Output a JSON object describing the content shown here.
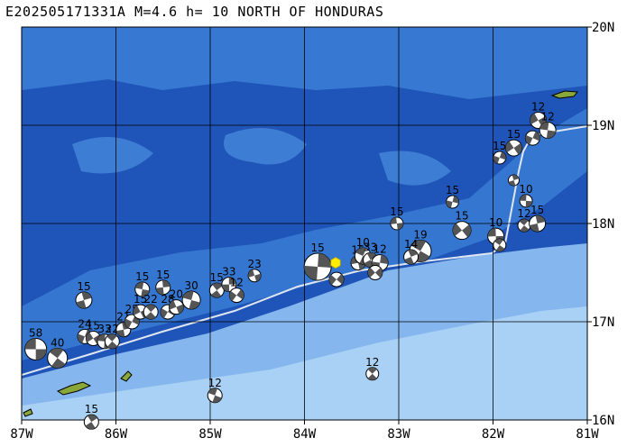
{
  "title": "E202505171331A M=4.6 h= 10 NORTH OF HONDURAS",
  "longitude_labels": [
    "87W",
    "86W",
    "85W",
    "84W",
    "83W",
    "82W",
    "81W"
  ],
  "latitude_labels": [
    "20N",
    "19N",
    "18N",
    "17N",
    "16N"
  ],
  "extent": {
    "lon_min": -87,
    "lon_max": -81,
    "lat_min": 16,
    "lat_max": 20
  },
  "colors": {
    "deep_water": "#1f55b8",
    "mid_water": "#3b7fd6",
    "shelf_water": "#86b6ee",
    "shallow_water": "#a9d0f5",
    "land": "#8aa83a",
    "grid": "#000000",
    "fault": "#dfe6f2",
    "epicenter": "#ffee00",
    "beachball_dark": "#555555",
    "beachball_light": "#ffffff"
  },
  "epicenter": {
    "lon": -83.67,
    "lat": 17.6
  },
  "events": [
    {
      "lon": -86.85,
      "lat": 16.72,
      "label": "58",
      "size": 12
    },
    {
      "lon": -86.62,
      "lat": 16.63,
      "label": "40",
      "size": 11
    },
    {
      "lon": -86.34,
      "lat": 17.22,
      "label": "15",
      "size": 9
    },
    {
      "lon": -86.33,
      "lat": 16.85,
      "label": "24",
      "size": 8
    },
    {
      "lon": -86.24,
      "lat": 16.83,
      "label": "15",
      "size": 8
    },
    {
      "lon": -86.12,
      "lat": 16.8,
      "label": "33",
      "size": 8
    },
    {
      "lon": -86.04,
      "lat": 16.8,
      "label": "22",
      "size": 8
    },
    {
      "lon": -85.92,
      "lat": 16.92,
      "label": "21",
      "size": 8
    },
    {
      "lon": -85.83,
      "lat": 17.0,
      "label": "25",
      "size": 8
    },
    {
      "lon": -85.74,
      "lat": 17.1,
      "label": "15",
      "size": 8
    },
    {
      "lon": -85.72,
      "lat": 17.33,
      "label": "15",
      "size": 8
    },
    {
      "lon": -85.63,
      "lat": 17.1,
      "label": "22",
      "size": 8
    },
    {
      "lon": -85.5,
      "lat": 17.35,
      "label": "15",
      "size": 8
    },
    {
      "lon": -85.45,
      "lat": 17.1,
      "label": "28",
      "size": 8
    },
    {
      "lon": -85.36,
      "lat": 17.15,
      "label": "20",
      "size": 8
    },
    {
      "lon": -85.2,
      "lat": 17.22,
      "label": "30",
      "size": 10
    },
    {
      "lon": -84.93,
      "lat": 17.32,
      "label": "15",
      "size": 8
    },
    {
      "lon": -84.8,
      "lat": 17.38,
      "label": "33",
      "size": 8
    },
    {
      "lon": -84.72,
      "lat": 17.27,
      "label": "12",
      "size": 8
    },
    {
      "lon": -84.53,
      "lat": 17.47,
      "label": "23",
      "size": 7
    },
    {
      "lon": -84.95,
      "lat": 16.25,
      "label": "12",
      "size": 8
    },
    {
      "lon": -86.26,
      "lat": 15.98,
      "label": "15",
      "size": 8
    },
    {
      "lon": -83.86,
      "lat": 17.56,
      "label": "15",
      "size": 15
    },
    {
      "lon": -83.66,
      "lat": 17.43,
      "label": "",
      "size": 8
    },
    {
      "lon": -83.43,
      "lat": 17.6,
      "label": "15",
      "size": 8
    },
    {
      "lon": -83.38,
      "lat": 17.67,
      "label": "10",
      "size": 9
    },
    {
      "lon": -83.3,
      "lat": 17.63,
      "label": "33",
      "size": 8
    },
    {
      "lon": -83.2,
      "lat": 17.6,
      "label": "12",
      "size": 9
    },
    {
      "lon": -83.25,
      "lat": 17.5,
      "label": "",
      "size": 8
    },
    {
      "lon": -83.02,
      "lat": 18.0,
      "label": "15",
      "size": 7
    },
    {
      "lon": -82.77,
      "lat": 17.72,
      "label": "19",
      "size": 12
    },
    {
      "lon": -82.87,
      "lat": 17.66,
      "label": "14",
      "size": 8
    },
    {
      "lon": -82.43,
      "lat": 18.22,
      "label": "15",
      "size": 7
    },
    {
      "lon": -82.33,
      "lat": 17.93,
      "label": "15",
      "size": 10
    },
    {
      "lon": -81.97,
      "lat": 17.87,
      "label": "10",
      "size": 9
    },
    {
      "lon": -81.93,
      "lat": 17.78,
      "label": "",
      "size": 7
    },
    {
      "lon": -81.78,
      "lat": 18.44,
      "label": "",
      "size": 6
    },
    {
      "lon": -81.93,
      "lat": 18.67,
      "label": "15",
      "size": 7
    },
    {
      "lon": -81.78,
      "lat": 18.77,
      "label": "15",
      "size": 9
    },
    {
      "lon": -81.65,
      "lat": 18.23,
      "label": "10",
      "size": 7
    },
    {
      "lon": -81.67,
      "lat": 17.98,
      "label": "12",
      "size": 7
    },
    {
      "lon": -81.53,
      "lat": 18.0,
      "label": "15",
      "size": 9
    },
    {
      "lon": -81.58,
      "lat": 18.87,
      "label": "",
      "size": 8
    },
    {
      "lon": -81.52,
      "lat": 19.05,
      "label": "12",
      "size": 9
    },
    {
      "lon": -81.42,
      "lat": 18.95,
      "label": "12",
      "size": 9
    },
    {
      "lon": -83.28,
      "lat": 16.47,
      "label": "12",
      "size": 7
    }
  ]
}
